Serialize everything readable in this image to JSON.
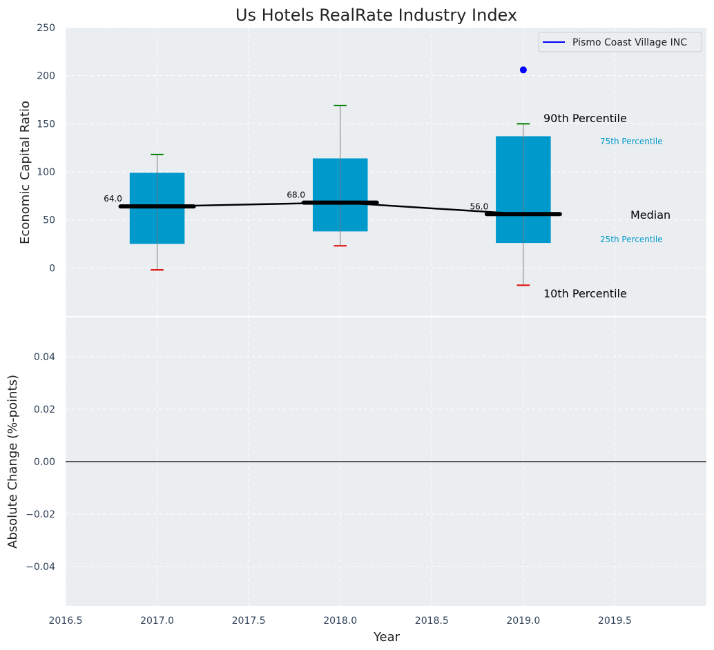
{
  "chart_data": [
    {
      "type": "box",
      "title": "Us Hotels RealRate Industry Index",
      "ylabel": "Economic Capital Ratio",
      "ylim": [
        -50,
        250
      ],
      "yticks": [
        0,
        50,
        100,
        150,
        200,
        250
      ],
      "xlim": [
        2016.5,
        2020.0
      ],
      "grid": true,
      "legend": {
        "position": "top-right",
        "entries": [
          "Pismo Coast Village INC"
        ]
      },
      "boxes": [
        {
          "x": 2017.0,
          "p10": -2,
          "p25": 25,
          "median": 64,
          "p75": 99,
          "p90": 118
        },
        {
          "x": 2018.0,
          "p10": 23,
          "p25": 38,
          "median": 68,
          "p75": 114,
          "p90": 169
        },
        {
          "x": 2019.0,
          "p10": -18,
          "p25": 26,
          "median": 56,
          "p75": 137,
          "p90": 150
        }
      ],
      "median_line": {
        "x": [
          2017.0,
          2018.0,
          2019.0
        ],
        "values": [
          64,
          68,
          56
        ]
      },
      "median_labels": [
        "64.0",
        "68.0",
        "56.0"
      ],
      "company_series": {
        "name": "Pismo Coast Village INC",
        "x": [
          2019.0
        ],
        "values": [
          206
        ]
      },
      "annotations": {
        "p90": "90th Percentile",
        "p75": "75th Percentile",
        "median": "Median",
        "p25": "25th Percentile",
        "p10": "10th Percentile"
      }
    },
    {
      "type": "line",
      "ylabel": "Absolute Change (%-points)",
      "xlabel": "Year",
      "ylim": [
        -0.055,
        0.055
      ],
      "yticks": [
        "0.04",
        "0.02",
        "0.00",
        "−0.02",
        "−0.04"
      ],
      "ytick_values": [
        0.04,
        0.02,
        0.0,
        -0.02,
        -0.04
      ],
      "xticks": [
        "2016.5",
        "2017.0",
        "2017.5",
        "2018.0",
        "2018.5",
        "2019.0",
        "2019.5"
      ],
      "xtick_values": [
        2016.5,
        2017.0,
        2017.5,
        2018.0,
        2018.5,
        2019.0,
        2019.5
      ],
      "xlim": [
        2016.5,
        2020.0
      ],
      "grid": true,
      "reference_line": 0
    }
  ],
  "colors": {
    "plot_bg": "#eaeef0",
    "box": "#0099cc",
    "p90_cap": "#008000",
    "p10_cap": "#e00000",
    "median": "#000000",
    "company": "#0000ff",
    "tick_text": "#2e4057"
  }
}
